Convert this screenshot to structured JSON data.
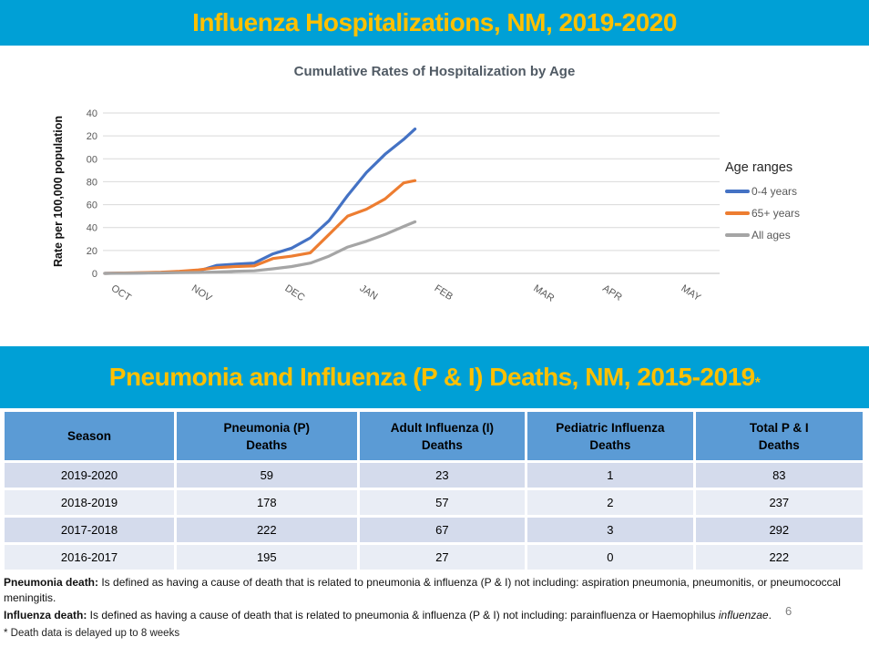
{
  "colors": {
    "banner_bg": "#00A0D6",
    "banner_text": "#FFC000",
    "table_header_bg": "#5B9BD5",
    "row_dark": "#D4DBEC",
    "row_light": "#E9EDF5",
    "gridline": "#D9D9D9",
    "axis_line": "#BFBFBF",
    "tick_text": "#595959"
  },
  "slide1": {
    "banner_title": "Influenza Hospitalizations, NM, 2019-2020"
  },
  "slide2": {
    "banner_title": "Pneumonia and Influenza (P & I) Deaths, NM, 2015-2019",
    "banner_asterisk": "*"
  },
  "chart_data": [
    {
      "type": "line",
      "title": "Cumulative Rates of Hospitalization by Age",
      "ylabel": "Rate per 100,000 population",
      "xlabel": "",
      "ylim": [
        0,
        140
      ],
      "ytick_step": 20,
      "grid": true,
      "legend_position": "right",
      "legend_title": "Age ranges",
      "x_unit": "week",
      "x_total_weeks": 33,
      "x_months": [
        "OCT",
        "NOV",
        "DEC",
        "JAN",
        "FEB",
        "MAR",
        "APR",
        "MAY"
      ],
      "x_month_week_positions": [
        0.7,
        5,
        10,
        14,
        18,
        23.3,
        27,
        31.2
      ],
      "series": [
        {
          "name": "0-4 years",
          "color": "#4472C4",
          "x": [
            0,
            1,
            2,
            3,
            4,
            5,
            6,
            7,
            8,
            9,
            10,
            11,
            12,
            13,
            14,
            15,
            16,
            16.6
          ],
          "values": [
            0,
            0.2,
            0.4,
            0.6,
            1,
            2,
            7,
            8,
            9,
            17,
            22,
            31,
            46,
            68,
            88,
            104,
            117,
            126
          ]
        },
        {
          "name": "65+ years",
          "color": "#ED7D31",
          "x": [
            0,
            1,
            2,
            3,
            4,
            5,
            6,
            7,
            8,
            9,
            10,
            11,
            12,
            13,
            14,
            15,
            16,
            16.6
          ],
          "values": [
            0,
            0.3,
            0.6,
            1,
            1.8,
            3,
            5,
            6,
            6.5,
            13,
            15,
            18,
            34,
            50,
            56,
            65,
            79,
            81
          ]
        },
        {
          "name": "All ages",
          "color": "#A5A5A5",
          "x": [
            0,
            1,
            2,
            3,
            4,
            5,
            6,
            7,
            8,
            9,
            10,
            11,
            12,
            13,
            14,
            15,
            16,
            16.6
          ],
          "values": [
            0,
            0.1,
            0.2,
            0.4,
            0.6,
            0.8,
            1.2,
            1.8,
            2.2,
            4,
            6,
            9,
            15,
            23,
            28,
            34,
            41,
            45
          ]
        }
      ]
    },
    {
      "type": "table",
      "columns": [
        [
          "Season"
        ],
        [
          "Pneumonia (P)",
          "Deaths"
        ],
        [
          "Adult Influenza (I)",
          "Deaths"
        ],
        [
          "Pediatric Influenza",
          "Deaths"
        ],
        [
          "Total P & I",
          "Deaths"
        ]
      ],
      "rows": [
        [
          "2019-2020",
          "59",
          "23",
          "1",
          "83"
        ],
        [
          "2018-2019",
          "178",
          "57",
          "2",
          "237"
        ],
        [
          "2017-2018",
          "222",
          "67",
          "3",
          "292"
        ],
        [
          "2016-2017",
          "195",
          "27",
          "0",
          "222"
        ]
      ]
    }
  ],
  "notes": {
    "pneumonia_label": "Pneumonia death:",
    "pneumonia_text": " Is defined as having a cause of death that is related to pneumonia & influenza (P & I) not including: aspiration pneumonia, pneumonitis,  or pneumococcal meningitis.",
    "influenza_label": "Influenza death:",
    "influenza_text": " Is defined as having a cause of death that is related to pneumonia & influenza (P & I) not including: parainfluenza or Haemophilus ",
    "influenza_italic": "influenzae",
    "influenza_end": ".",
    "page_number": "6",
    "delay_note": "* Death data is delayed up to 8 weeks"
  }
}
